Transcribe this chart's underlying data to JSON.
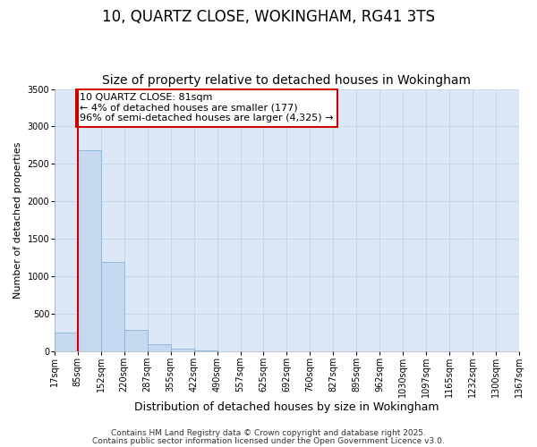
{
  "title1": "10, QUARTZ CLOSE, WOKINGHAM, RG41 3TS",
  "title2": "Size of property relative to detached houses in Wokingham",
  "xlabel": "Distribution of detached houses by size in Wokingham",
  "ylabel": "Number of detached properties",
  "bin_labels": [
    "17sqm",
    "85sqm",
    "152sqm",
    "220sqm",
    "287sqm",
    "355sqm",
    "422sqm",
    "490sqm",
    "557sqm",
    "625sqm",
    "692sqm",
    "760sqm",
    "827sqm",
    "895sqm",
    "962sqm",
    "1030sqm",
    "1097sqm",
    "1165sqm",
    "1232sqm",
    "1300sqm",
    "1367sqm"
  ],
  "bar_heights": [
    250,
    2680,
    1195,
    290,
    90,
    30,
    10,
    0,
    0,
    0,
    0,
    0,
    0,
    0,
    0,
    0,
    0,
    0,
    0,
    0
  ],
  "bar_color": "#c5d8f0",
  "bar_edge_color": "#8ab4d8",
  "vline_x": 1,
  "vline_color": "#cc0000",
  "annotation_text": "10 QUARTZ CLOSE: 81sqm\n← 4% of detached houses are smaller (177)\n96% of semi-detached houses are larger (4,325) →",
  "annotation_box_color": "#cc0000",
  "ylim": [
    0,
    3500
  ],
  "yticks": [
    0,
    500,
    1000,
    1500,
    2000,
    2500,
    3000,
    3500
  ],
  "grid_color": "#c8d8ec",
  "plot_bg_color": "#dce8f8",
  "fig_bg_color": "#ffffff",
  "footer1": "Contains HM Land Registry data © Crown copyright and database right 2025.",
  "footer2": "Contains public sector information licensed under the Open Government Licence v3.0.",
  "title1_fontsize": 12,
  "title2_fontsize": 10,
  "xlabel_fontsize": 9,
  "ylabel_fontsize": 8,
  "tick_fontsize": 7,
  "annotation_fontsize": 8,
  "footer_fontsize": 6.5
}
